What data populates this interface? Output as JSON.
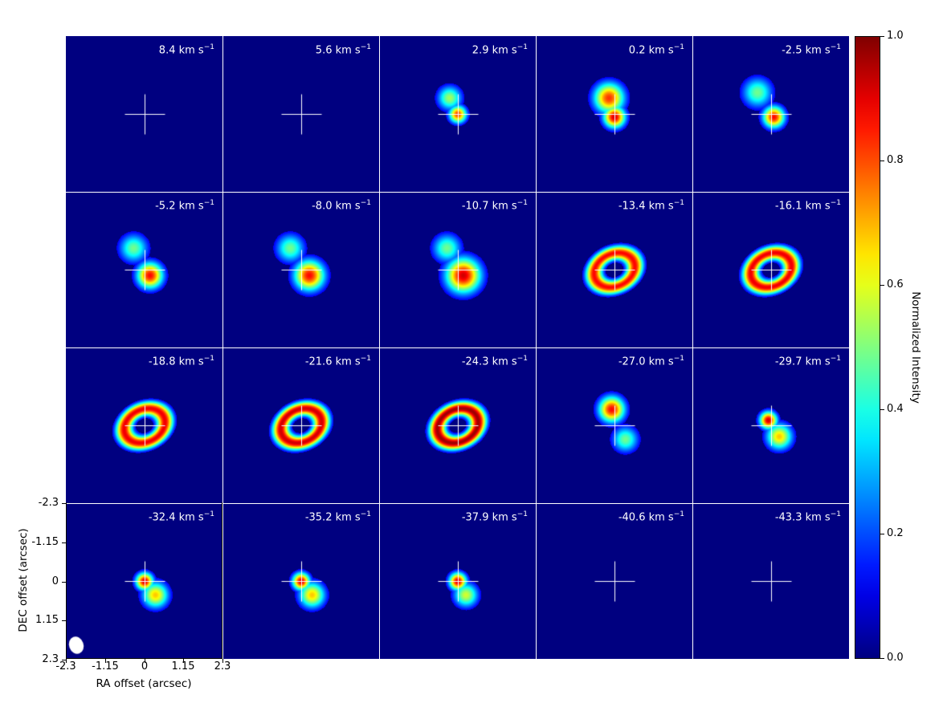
{
  "chart_data": {
    "type": "heatmap",
    "layout": "channel-map",
    "rows": 4,
    "cols": 5,
    "unit_label": "km s",
    "unit_exp": "−1",
    "velocities": [
      "8.4",
      "5.6",
      "2.9",
      "0.2",
      "-2.5",
      "-5.2",
      "-8.0",
      "-10.7",
      "-13.4",
      "-16.1",
      "-18.8",
      "-21.6",
      "-24.3",
      "-27.0",
      "-29.7",
      "-32.4",
      "-35.2",
      "-37.9",
      "-40.6",
      "-43.3"
    ],
    "emission": [
      {
        "shape": "none"
      },
      {
        "shape": "none"
      },
      {
        "shape": "blobs",
        "blobs": [
          {
            "dx": -0.15,
            "dy": -0.3,
            "r": 0.28,
            "peak": 0.55
          },
          {
            "dx": 0.0,
            "dy": 0.0,
            "r": 0.2,
            "peak": 0.85
          }
        ]
      },
      {
        "shape": "blobs",
        "blobs": [
          {
            "dx": -0.1,
            "dy": -0.3,
            "r": 0.35,
            "peak": 0.85
          },
          {
            "dx": 0.0,
            "dy": 0.05,
            "r": 0.25,
            "peak": 0.95
          }
        ]
      },
      {
        "shape": "blobs",
        "blobs": [
          {
            "dx": -0.25,
            "dy": -0.4,
            "r": 0.35,
            "peak": 0.5
          },
          {
            "dx": 0.05,
            "dy": 0.05,
            "r": 0.25,
            "peak": 0.9
          }
        ]
      },
      {
        "shape": "blobs",
        "blobs": [
          {
            "dx": -0.2,
            "dy": -0.4,
            "r": 0.33,
            "peak": 0.5
          },
          {
            "dx": 0.1,
            "dy": 0.1,
            "r": 0.3,
            "peak": 0.9
          }
        ]
      },
      {
        "shape": "blobs",
        "blobs": [
          {
            "dx": -0.2,
            "dy": -0.4,
            "r": 0.33,
            "peak": 0.5
          },
          {
            "dx": 0.15,
            "dy": 0.1,
            "r": 0.35,
            "peak": 0.9
          }
        ]
      },
      {
        "shape": "blobs",
        "blobs": [
          {
            "dx": -0.2,
            "dy": -0.4,
            "r": 0.33,
            "peak": 0.5
          },
          {
            "dx": 0.1,
            "dy": 0.1,
            "r": 0.4,
            "peak": 0.95
          }
        ]
      },
      {
        "shape": "ring",
        "rx": 0.65,
        "ry": 0.5,
        "angle": -25,
        "dx": 0.0,
        "dy": 0.0,
        "peak": 0.9
      },
      {
        "shape": "ring",
        "rx": 0.65,
        "ry": 0.5,
        "angle": -25,
        "dx": 0.0,
        "dy": 0.0,
        "peak": 0.92
      },
      {
        "shape": "ring",
        "rx": 0.65,
        "ry": 0.5,
        "angle": -25,
        "dx": 0.0,
        "dy": 0.0,
        "peak": 0.92
      },
      {
        "shape": "ring",
        "rx": 0.65,
        "ry": 0.5,
        "angle": -25,
        "dx": 0.0,
        "dy": 0.0,
        "peak": 0.95
      },
      {
        "shape": "ring",
        "rx": 0.65,
        "ry": 0.5,
        "angle": -25,
        "dx": 0.0,
        "dy": 0.0,
        "peak": 1.0
      },
      {
        "shape": "blobs",
        "blobs": [
          {
            "dx": -0.05,
            "dy": -0.3,
            "r": 0.3,
            "peak": 0.9
          },
          {
            "dx": 0.2,
            "dy": 0.25,
            "r": 0.3,
            "peak": 0.5
          }
        ]
      },
      {
        "shape": "blobs",
        "blobs": [
          {
            "dx": -0.05,
            "dy": -0.1,
            "r": 0.2,
            "peak": 0.95
          },
          {
            "dx": 0.15,
            "dy": 0.2,
            "r": 0.3,
            "peak": 0.7
          }
        ]
      },
      {
        "shape": "blobs",
        "blobs": [
          {
            "dx": 0.0,
            "dy": 0.0,
            "r": 0.2,
            "peak": 0.95
          },
          {
            "dx": 0.2,
            "dy": 0.25,
            "r": 0.3,
            "peak": 0.7
          }
        ]
      },
      {
        "shape": "blobs",
        "blobs": [
          {
            "dx": 0.0,
            "dy": 0.0,
            "r": 0.2,
            "peak": 0.95
          },
          {
            "dx": 0.2,
            "dy": 0.25,
            "r": 0.3,
            "peak": 0.7
          }
        ]
      },
      {
        "shape": "blobs",
        "blobs": [
          {
            "dx": 0.0,
            "dy": 0.0,
            "r": 0.2,
            "peak": 0.95
          },
          {
            "dx": 0.15,
            "dy": 0.25,
            "r": 0.28,
            "peak": 0.6
          }
        ]
      },
      {
        "shape": "none"
      },
      {
        "shape": "none"
      }
    ],
    "beam": {
      "major_arcsec": 0.45,
      "minor_arcsec": 0.35
    },
    "x_ticks": [
      "-2.3",
      "-1.15",
      "0",
      "1.15",
      "2.3"
    ],
    "y_ticks": [
      "-2.3",
      "-1.15",
      "0",
      "1.15",
      "2.3"
    ],
    "xlim": [
      -2.3,
      2.3
    ],
    "ylim": [
      -2.3,
      2.3
    ],
    "xlabel": "RA offset (arcsec)",
    "ylabel": "DEC offset (arcsec)",
    "colorbar": {
      "label": "Normalized Intensity",
      "range": [
        0.0,
        1.0
      ],
      "ticks": [
        "0.0",
        "0.2",
        "0.4",
        "0.6",
        "0.8",
        "1.0"
      ],
      "colormap": "jet"
    }
  }
}
